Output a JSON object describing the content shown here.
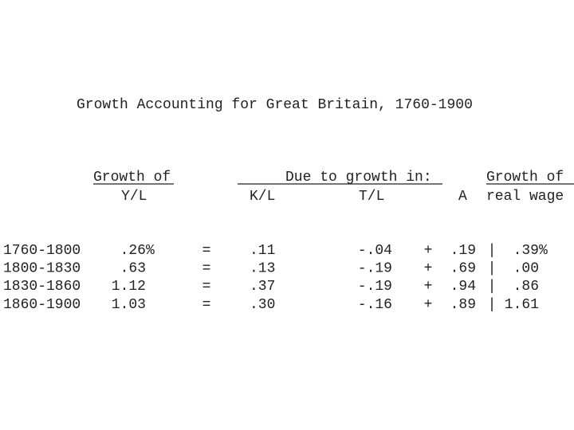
{
  "title": "Growth Accounting for Great Britain, 1760-1900",
  "header": {
    "groups": [
      "Growth of",
      "Due to growth in:",
      "Growth of"
    ],
    "columns": [
      "Y/L",
      "K/L",
      "T/L",
      "A",
      "real wage"
    ]
  },
  "table": {
    "rows": [
      [
        "1760-1800",
        ".26%",
        "=",
        ".11",
        "-.04",
        "+",
        ".19",
        "|",
        ".39%"
      ],
      [
        "1800-1830",
        ".63",
        "=",
        ".13",
        "-.19",
        "+",
        ".69",
        "|",
        ".00"
      ],
      [
        "1830-1860",
        "1.12",
        "=",
        ".37",
        "-.19",
        "+",
        ".94",
        "|",
        ".86"
      ],
      [
        "1860-1900",
        "1.03",
        "=",
        ".30",
        "-.16",
        "+",
        ".89",
        "|",
        "1.61"
      ]
    ]
  }
}
